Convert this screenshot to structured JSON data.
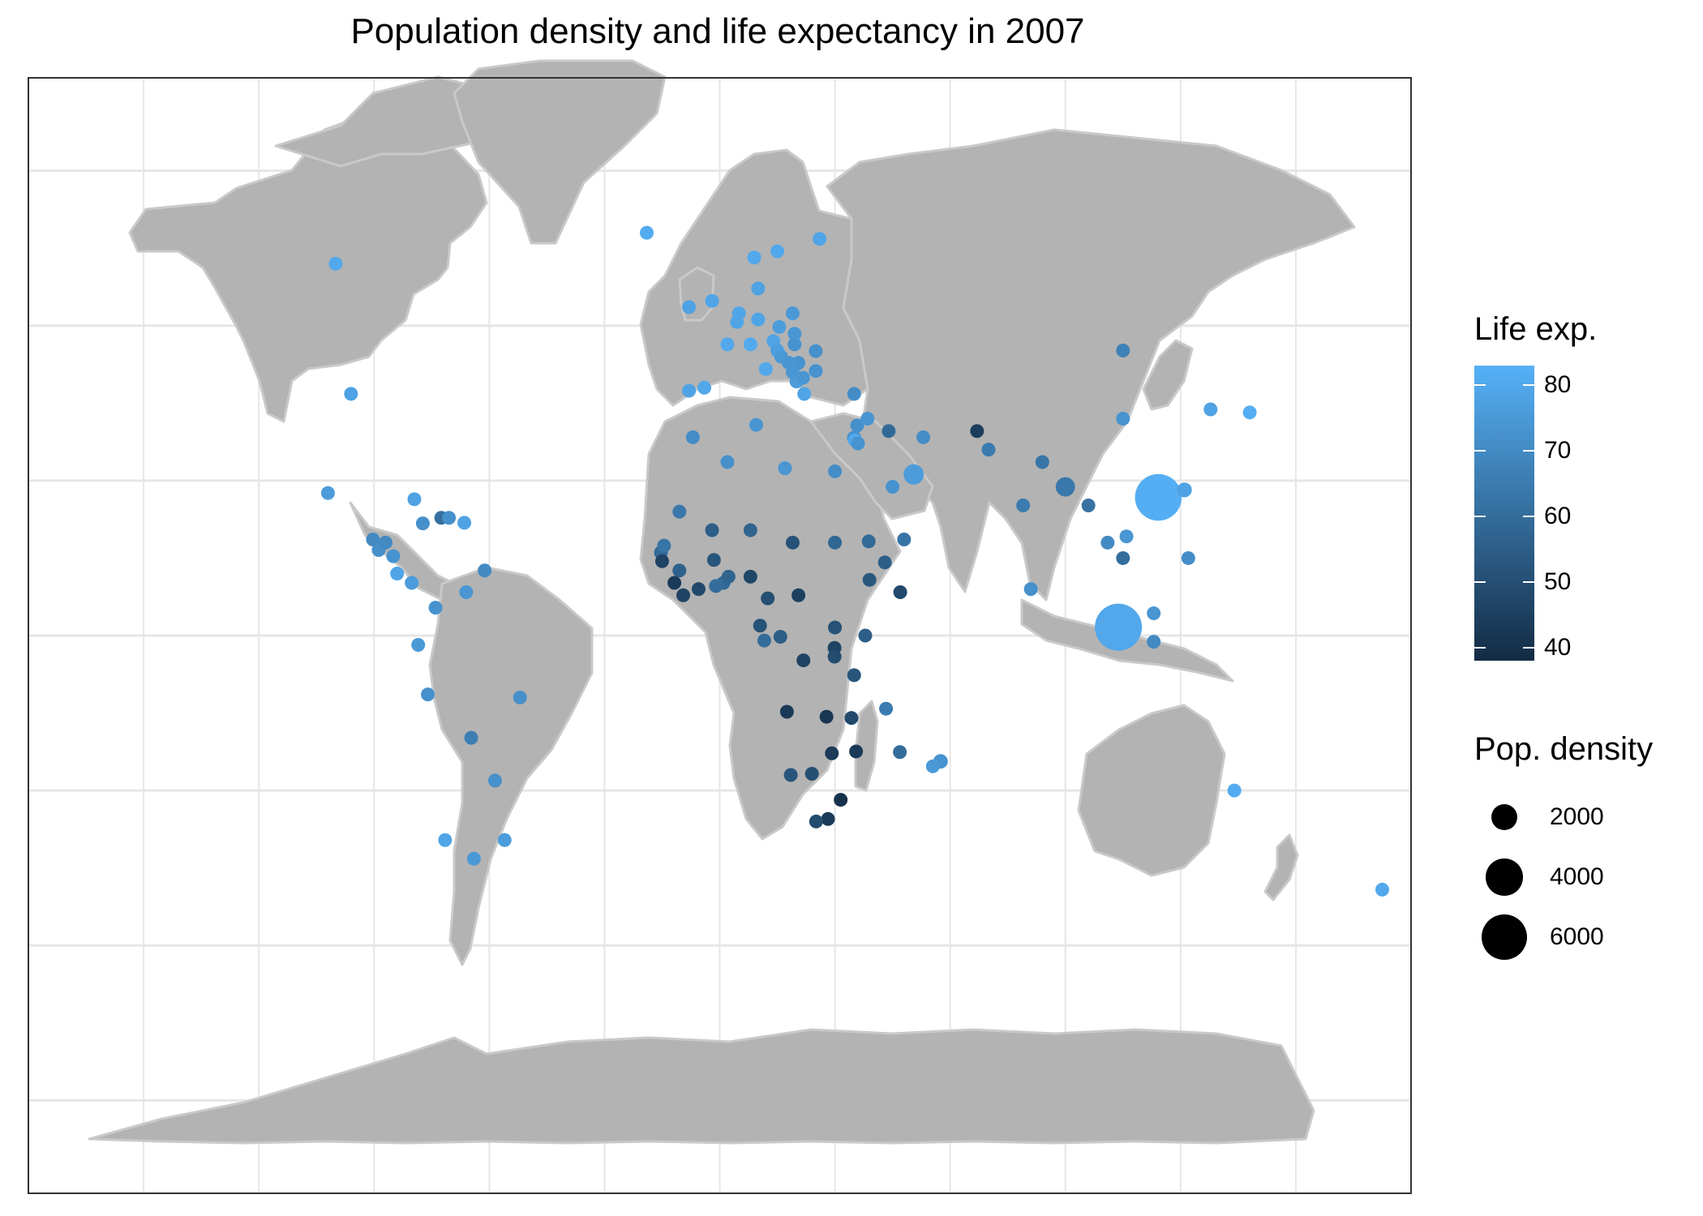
{
  "title": "Population density and life expectancy in 2007",
  "legend": {
    "color_title": "Life exp.",
    "color_ticks": [
      "80",
      "70",
      "60",
      "50",
      "40"
    ],
    "color_range": [
      38,
      83
    ],
    "color_low": "#132B43",
    "color_high": "#56B1F7",
    "size_title": "Pop. density",
    "size_labels": [
      "2000",
      "4000",
      "6000"
    ]
  },
  "colors": {
    "land": "#B3B3B3",
    "land_border": "#C9C9C9",
    "grid": "#E6E6E6",
    "panel_border": "#333333"
  },
  "chart_data": {
    "type": "scatter",
    "map": "world",
    "color_encodes": "Life exp.",
    "size_encodes": "Pop. density",
    "points": [
      {
        "lon": -96,
        "lat": 39,
        "life": 78,
        "density": 35
      },
      {
        "lon": -100,
        "lat": 60,
        "life": 80,
        "density": 4
      },
      {
        "lon": -102,
        "lat": 23,
        "life": 76,
        "density": 55
      },
      {
        "lon": -19,
        "lat": 65,
        "life": 81,
        "density": 3
      },
      {
        "lon": 9,
        "lat": 61,
        "life": 80,
        "density": 15
      },
      {
        "lon": 15,
        "lat": 62,
        "life": 80,
        "density": 20
      },
      {
        "lon": 26,
        "lat": 64,
        "life": 79,
        "density": 17
      },
      {
        "lon": 10,
        "lat": 56,
        "life": 78,
        "density": 125
      },
      {
        "lon": -8,
        "lat": 53,
        "life": 78,
        "density": 60
      },
      {
        "lon": -2,
        "lat": 54,
        "life": 79,
        "density": 250
      },
      {
        "lon": 5,
        "lat": 52,
        "life": 79,
        "density": 400
      },
      {
        "lon": 4.5,
        "lat": 50.6,
        "life": 79,
        "density": 340
      },
      {
        "lon": 2,
        "lat": 47,
        "life": 80,
        "density": 110
      },
      {
        "lon": 10,
        "lat": 51,
        "life": 79,
        "density": 230
      },
      {
        "lon": 19,
        "lat": 52,
        "life": 75,
        "density": 120
      },
      {
        "lon": 15.5,
        "lat": 49.8,
        "life": 76,
        "density": 130
      },
      {
        "lon": 8,
        "lat": 47,
        "life": 81,
        "density": 180
      },
      {
        "lon": 14,
        "lat": 47.5,
        "life": 79,
        "density": 100
      },
      {
        "lon": 19.5,
        "lat": 47,
        "life": 73,
        "density": 110
      },
      {
        "lon": 19.5,
        "lat": 48.7,
        "life": 74,
        "density": 110
      },
      {
        "lon": 12,
        "lat": 43,
        "life": 80,
        "density": 195
      },
      {
        "lon": -4,
        "lat": 40,
        "life": 80,
        "density": 90
      },
      {
        "lon": -8,
        "lat": 39.5,
        "life": 78,
        "density": 115
      },
      {
        "lon": 15,
        "lat": 46,
        "life": 77,
        "density": 100
      },
      {
        "lon": 16,
        "lat": 45,
        "life": 75,
        "density": 80
      },
      {
        "lon": 18,
        "lat": 44,
        "life": 74,
        "density": 75
      },
      {
        "lon": 20.5,
        "lat": 44,
        "life": 73,
        "density": 90
      },
      {
        "lon": 25,
        "lat": 45.9,
        "life": 72,
        "density": 95
      },
      {
        "lon": 25,
        "lat": 42.7,
        "life": 73,
        "density": 70
      },
      {
        "lon": 19,
        "lat": 42.5,
        "life": 74,
        "density": 45
      },
      {
        "lon": 21.7,
        "lat": 41.6,
        "life": 74,
        "density": 80
      },
      {
        "lon": 20,
        "lat": 41,
        "life": 76,
        "density": 110
      },
      {
        "lon": 22,
        "lat": 39,
        "life": 79,
        "density": 85
      },
      {
        "lon": 35,
        "lat": 39,
        "life": 71,
        "density": 95
      },
      {
        "lon": 2,
        "lat": 28,
        "life": 72,
        "density": 15
      },
      {
        "lon": -7,
        "lat": 32,
        "life": 71,
        "density": 70
      },
      {
        "lon": 9.5,
        "lat": 34,
        "life": 74,
        "density": 65
      },
      {
        "lon": 17,
        "lat": 27,
        "life": 74,
        "density": 4
      },
      {
        "lon": 30,
        "lat": 26.5,
        "life": 71,
        "density": 80
      },
      {
        "lon": 35.2,
        "lat": 31.5,
        "life": 80,
        "density": 350
      },
      {
        "lon": 36,
        "lat": 31,
        "life": 73,
        "density": 65
      },
      {
        "lon": 38.5,
        "lat": 35,
        "life": 74,
        "density": 110
      },
      {
        "lon": 35.8,
        "lat": 33.9,
        "life": 72,
        "density": 400
      },
      {
        "lon": 35,
        "lat": 31.9,
        "life": 73,
        "density": 600
      },
      {
        "lon": 44,
        "lat": 33,
        "life": 59,
        "density": 70
      },
      {
        "lon": 53,
        "lat": 32,
        "life": 71,
        "density": 45
      },
      {
        "lon": 45,
        "lat": 24,
        "life": 73,
        "density": 12
      },
      {
        "lon": 50.5,
        "lat": 26,
        "life": 76,
        "density": 1200
      },
      {
        "lon": 48,
        "lat": 15.5,
        "life": 63,
        "density": 45
      },
      {
        "lon": 47,
        "lat": 7,
        "life": 48,
        "density": 15
      },
      {
        "lon": 43,
        "lat": 11.8,
        "life": 55,
        "density": 35
      },
      {
        "lon": 39,
        "lat": 9,
        "life": 53,
        "density": 75
      },
      {
        "lon": 38.8,
        "lat": 15.2,
        "life": 59,
        "density": 45
      },
      {
        "lon": 30,
        "lat": 15,
        "life": 58,
        "density": 20
      },
      {
        "lon": 19,
        "lat": 15,
        "life": 51,
        "density": 9
      },
      {
        "lon": 8,
        "lat": 17,
        "life": 57,
        "density": 11
      },
      {
        "lon": -2,
        "lat": 17,
        "life": 55,
        "density": 10
      },
      {
        "lon": -10.5,
        "lat": 20,
        "life": 64,
        "density": 3
      },
      {
        "lon": -14.5,
        "lat": 14.5,
        "life": 63,
        "density": 60
      },
      {
        "lon": -15.3,
        "lat": 13.4,
        "life": 59,
        "density": 150
      },
      {
        "lon": -15,
        "lat": 12,
        "life": 46,
        "density": 45
      },
      {
        "lon": -10.5,
        "lat": 10.5,
        "life": 56,
        "density": 40
      },
      {
        "lon": -11.8,
        "lat": 8.5,
        "life": 43,
        "density": 80
      },
      {
        "lon": -9.5,
        "lat": 6.5,
        "life": 46,
        "density": 35
      },
      {
        "lon": -5.5,
        "lat": 7.5,
        "life": 48,
        "density": 60
      },
      {
        "lon": -1.5,
        "lat": 12.2,
        "life": 52,
        "density": 50
      },
      {
        "lon": -1,
        "lat": 8,
        "life": 60,
        "density": 100
      },
      {
        "lon": 1,
        "lat": 8.5,
        "life": 59,
        "density": 110
      },
      {
        "lon": 2.3,
        "lat": 9.5,
        "life": 57,
        "density": 75
      },
      {
        "lon": 8,
        "lat": 9.5,
        "life": 47,
        "density": 160
      },
      {
        "lon": 12.5,
        "lat": 6,
        "life": 50,
        "density": 40
      },
      {
        "lon": 20.5,
        "lat": 6.5,
        "life": 45,
        "density": 7
      },
      {
        "lon": 10.5,
        "lat": 1.6,
        "life": 51,
        "density": 20
      },
      {
        "lon": 11.6,
        "lat": -0.8,
        "life": 60,
        "density": 6
      },
      {
        "lon": 15.8,
        "lat": -0.2,
        "life": 55,
        "density": 11
      },
      {
        "lon": 21.8,
        "lat": -4,
        "life": 46,
        "density": 27
      },
      {
        "lon": 30,
        "lat": 1.3,
        "life": 51,
        "density": 140
      },
      {
        "lon": 37.9,
        "lat": 0,
        "life": 55,
        "density": 60
      },
      {
        "lon": 35,
        "lat": -6.4,
        "life": 52,
        "density": 45
      },
      {
        "lon": 29.9,
        "lat": -2,
        "life": 46,
        "density": 400
      },
      {
        "lon": 29.9,
        "lat": -3.4,
        "life": 49,
        "density": 300
      },
      {
        "lon": 17.5,
        "lat": -12.3,
        "life": 43,
        "density": 14
      },
      {
        "lon": 27.8,
        "lat": -13.1,
        "life": 42,
        "density": 16
      },
      {
        "lon": 34.3,
        "lat": -13.3,
        "life": 48,
        "density": 150
      },
      {
        "lon": 35.5,
        "lat": -18.7,
        "life": 43,
        "density": 28
      },
      {
        "lon": 29.2,
        "lat": -19,
        "life": 43,
        "density": 33
      },
      {
        "lon": 18.5,
        "lat": -22.5,
        "life": 52,
        "density": 3
      },
      {
        "lon": 24,
        "lat": -22.3,
        "life": 50,
        "density": 3
      },
      {
        "lon": 25.1,
        "lat": -30,
        "life": 49,
        "density": 40
      },
      {
        "lon": 28.2,
        "lat": -29.6,
        "life": 43,
        "density": 70
      },
      {
        "lon": 31.5,
        "lat": -26.5,
        "life": 40,
        "density": 70
      },
      {
        "lon": 46.9,
        "lat": -18.8,
        "life": 60,
        "density": 35
      },
      {
        "lon": 57.5,
        "lat": -20.3,
        "life": 73,
        "density": 620
      },
      {
        "lon": 55.5,
        "lat": -21.1,
        "life": 75,
        "density": 330
      },
      {
        "lon": 43.3,
        "lat": -11.8,
        "life": 65,
        "density": 380
      },
      {
        "lon": 67,
        "lat": 33,
        "life": 44,
        "density": 45
      },
      {
        "lon": 70,
        "lat": 30,
        "life": 65,
        "density": 210
      },
      {
        "lon": 79,
        "lat": 21,
        "life": 65,
        "density": 380
      },
      {
        "lon": 90,
        "lat": 24,
        "life": 64,
        "density": 1100
      },
      {
        "lon": 84,
        "lat": 28,
        "life": 63,
        "density": 190
      },
      {
        "lon": 81,
        "lat": 7.5,
        "life": 72,
        "density": 320
      },
      {
        "lon": 105,
        "lat": 35,
        "life": 73,
        "density": 140
      },
      {
        "lon": 105,
        "lat": 46,
        "life": 67,
        "density": 2
      },
      {
        "lon": 114.2,
        "lat": 22.3,
        "life": 82,
        "density": 6400
      },
      {
        "lon": 121,
        "lat": 23.5,
        "life": 78,
        "density": 640
      },
      {
        "lon": 127.8,
        "lat": 36.5,
        "life": 78,
        "density": 500
      },
      {
        "lon": 138,
        "lat": 36,
        "life": 82,
        "density": 340
      },
      {
        "lon": 101,
        "lat": 15,
        "life": 70,
        "density": 130
      },
      {
        "lon": 96,
        "lat": 21,
        "life": 62,
        "density": 70
      },
      {
        "lon": 105.9,
        "lat": 16,
        "life": 74,
        "density": 270
      },
      {
        "lon": 105,
        "lat": 12.5,
        "life": 60,
        "density": 80
      },
      {
        "lon": 122,
        "lat": 12.5,
        "life": 71,
        "density": 300
      },
      {
        "lon": 103.8,
        "lat": 1.35,
        "life": 80,
        "density": 6500
      },
      {
        "lon": 113,
        "lat": -1,
        "life": 70,
        "density": 120
      },
      {
        "lon": 113,
        "lat": 3.6,
        "life": 74,
        "density": 85
      },
      {
        "lon": 134,
        "lat": -25,
        "life": 81,
        "density": 3
      },
      {
        "lon": 172.5,
        "lat": -41,
        "life": 80,
        "density": 16
      },
      {
        "lon": -87,
        "lat": 15,
        "life": 70,
        "density": 65
      },
      {
        "lon": -88.8,
        "lat": 13.8,
        "life": 72,
        "density": 300
      },
      {
        "lon": -90.3,
        "lat": 15.5,
        "life": 70,
        "density": 120
      },
      {
        "lon": -85,
        "lat": 12.8,
        "life": 73,
        "density": 45
      },
      {
        "lon": -84,
        "lat": 10,
        "life": 79,
        "density": 90
      },
      {
        "lon": -80.2,
        "lat": 8.5,
        "life": 76,
        "density": 45
      },
      {
        "lon": -79.5,
        "lat": 22,
        "life": 78,
        "density": 100
      },
      {
        "lon": -77.3,
        "lat": 18.1,
        "life": 72,
        "density": 250
      },
      {
        "lon": -72.5,
        "lat": 19,
        "life": 61,
        "density": 350
      },
      {
        "lon": -70.5,
        "lat": 19,
        "life": 72,
        "density": 200
      },
      {
        "lon": -66.5,
        "lat": 18.2,
        "life": 78,
        "density": 430
      },
      {
        "lon": -61.2,
        "lat": 10.5,
        "life": 70,
        "density": 250
      },
      {
        "lon": -74,
        "lat": 4.5,
        "life": 73,
        "density": 40
      },
      {
        "lon": -66,
        "lat": 7,
        "life": 74,
        "density": 30
      },
      {
        "lon": -78.5,
        "lat": -1.5,
        "life": 75,
        "density": 50
      },
      {
        "lon": -76,
        "lat": -9.5,
        "life": 72,
        "density": 22
      },
      {
        "lon": -52,
        "lat": -10,
        "life": 72,
        "density": 23
      },
      {
        "lon": -64.7,
        "lat": -16.5,
        "life": 66,
        "density": 9
      },
      {
        "lon": -58.5,
        "lat": -23.4,
        "life": 72,
        "density": 15
      },
      {
        "lon": -71.5,
        "lat": -33,
        "life": 79,
        "density": 22
      },
      {
        "lon": -64,
        "lat": -36,
        "life": 75,
        "density": 15
      },
      {
        "lon": -56,
        "lat": -33,
        "life": 76,
        "density": 20
      }
    ]
  }
}
